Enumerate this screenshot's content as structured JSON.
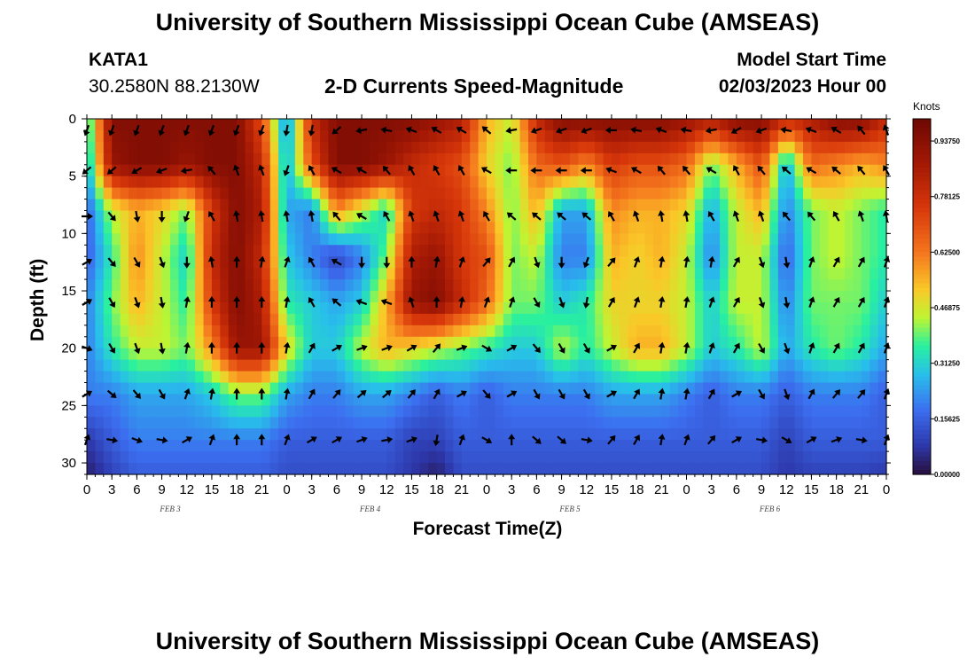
{
  "header": {
    "title": "University of Southern Mississippi Ocean Cube (AMSEAS)",
    "station": "KATA1",
    "coords": "30.2580N  88.2130W",
    "subtitle": "2-D Currents Speed-Magnitude",
    "model_start_label": "Model Start Time",
    "model_start_date": "02/03/2023 Hour 00"
  },
  "footer": {
    "title_repeat": "University of Southern Mississippi Ocean Cube (AMSEAS)"
  },
  "chart_data": {
    "type": "heatmap",
    "title": "2-D Currents Speed-Magnitude",
    "xlabel": "Forecast Time(Z)",
    "ylabel": "Depth (ft)",
    "x_tick_labels": [
      "0",
      "3",
      "6",
      "9",
      "12",
      "15",
      "18",
      "21",
      "0",
      "3",
      "6",
      "9",
      "12",
      "15",
      "18",
      "21",
      "0",
      "3",
      "6",
      "9",
      "12",
      "15",
      "18",
      "21",
      "0",
      "3",
      "6",
      "9",
      "12",
      "15",
      "18",
      "21",
      "0"
    ],
    "day_labels": [
      "FEB 3",
      "FEB 4",
      "FEB 5",
      "FEB 6"
    ],
    "x_range_hours": [
      0,
      96
    ],
    "y_ticks": [
      "0",
      "5",
      "10",
      "15",
      "20",
      "25",
      "30"
    ],
    "y_range_ft": [
      0,
      31
    ],
    "colorbar": {
      "unit": "Knots",
      "labels": [
        "0.93750",
        "0.78125",
        "0.62500",
        "0.46875",
        "0.31250",
        "0.15625",
        "0.00000"
      ],
      "range": [
        0,
        1.0
      ]
    },
    "arrow_depths_ft": [
      1,
      4.5,
      8.5,
      12.5,
      16,
      20,
      24,
      28
    ],
    "arrow_hours": [
      0,
      3,
      6,
      9,
      12,
      15,
      18,
      21,
      24,
      27,
      30,
      33,
      36,
      39,
      42,
      45,
      48,
      51,
      54,
      57,
      60,
      63,
      66,
      69,
      72,
      75,
      78,
      81,
      84,
      87,
      90,
      93,
      96
    ],
    "speed_profile_keyframes": {
      "hours": [
        0,
        3,
        6,
        9,
        12,
        15,
        18,
        21,
        24,
        27,
        30,
        33,
        36,
        39,
        42,
        45,
        48,
        51,
        54,
        57,
        60,
        63,
        66,
        69,
        72,
        75,
        78,
        81,
        84,
        87,
        90,
        93,
        96
      ],
      "depths_ft": [
        0,
        4,
        8,
        12,
        16,
        20,
        24,
        28,
        31
      ],
      "speed_knots": [
        [
          0.3,
          0.95,
          0.95,
          0.95,
          0.95,
          0.95,
          0.95,
          0.7,
          0.2,
          0.8,
          0.95,
          0.95,
          0.95,
          0.95,
          0.9,
          0.85,
          0.55,
          0.45,
          0.8,
          0.95,
          0.95,
          0.95,
          0.95,
          0.95,
          0.9,
          0.85,
          0.95,
          0.95,
          0.8,
          0.85,
          0.95,
          0.95,
          0.8
        ],
        [
          0.25,
          0.9,
          0.95,
          0.95,
          0.9,
          0.95,
          0.95,
          0.8,
          0.25,
          0.7,
          0.95,
          0.95,
          0.9,
          0.8,
          0.75,
          0.7,
          0.5,
          0.4,
          0.65,
          0.7,
          0.6,
          0.75,
          0.7,
          0.7,
          0.65,
          0.4,
          0.55,
          0.7,
          0.25,
          0.65,
          0.6,
          0.55,
          0.6
        ],
        [
          0.15,
          0.45,
          0.55,
          0.5,
          0.4,
          0.75,
          0.95,
          0.85,
          0.25,
          0.2,
          0.6,
          0.45,
          0.3,
          0.75,
          0.8,
          0.75,
          0.6,
          0.4,
          0.55,
          0.25,
          0.25,
          0.6,
          0.55,
          0.55,
          0.5,
          0.25,
          0.45,
          0.55,
          0.2,
          0.4,
          0.45,
          0.4,
          0.35
        ],
        [
          0.15,
          0.35,
          0.6,
          0.45,
          0.3,
          0.8,
          0.95,
          0.8,
          0.3,
          0.2,
          0.1,
          0.2,
          0.4,
          0.85,
          0.9,
          0.75,
          0.7,
          0.4,
          0.45,
          0.2,
          0.2,
          0.55,
          0.5,
          0.55,
          0.45,
          0.2,
          0.45,
          0.45,
          0.15,
          0.4,
          0.45,
          0.4,
          0.35
        ],
        [
          0.2,
          0.4,
          0.55,
          0.45,
          0.35,
          0.75,
          0.95,
          0.85,
          0.35,
          0.3,
          0.25,
          0.3,
          0.55,
          0.9,
          0.95,
          0.8,
          0.65,
          0.4,
          0.4,
          0.3,
          0.35,
          0.5,
          0.5,
          0.5,
          0.45,
          0.3,
          0.45,
          0.45,
          0.2,
          0.4,
          0.4,
          0.4,
          0.3
        ],
        [
          0.2,
          0.35,
          0.45,
          0.45,
          0.4,
          0.6,
          0.9,
          0.9,
          0.5,
          0.3,
          0.3,
          0.45,
          0.55,
          0.5,
          0.45,
          0.4,
          0.35,
          0.3,
          0.3,
          0.45,
          0.35,
          0.45,
          0.55,
          0.55,
          0.45,
          0.3,
          0.35,
          0.45,
          0.25,
          0.35,
          0.4,
          0.35,
          0.25
        ],
        [
          0.2,
          0.2,
          0.25,
          0.25,
          0.25,
          0.3,
          0.4,
          0.4,
          0.25,
          0.2,
          0.2,
          0.25,
          0.25,
          0.2,
          0.15,
          0.2,
          0.15,
          0.2,
          0.2,
          0.2,
          0.2,
          0.25,
          0.25,
          0.25,
          0.2,
          0.15,
          0.2,
          0.2,
          0.15,
          0.2,
          0.2,
          0.2,
          0.15
        ],
        [
          0.08,
          0.15,
          0.2,
          0.2,
          0.2,
          0.2,
          0.2,
          0.2,
          0.15,
          0.15,
          0.15,
          0.15,
          0.15,
          0.1,
          0.1,
          0.15,
          0.15,
          0.15,
          0.15,
          0.15,
          0.15,
          0.15,
          0.15,
          0.15,
          0.15,
          0.15,
          0.15,
          0.15,
          0.1,
          0.15,
          0.15,
          0.15,
          0.15
        ],
        [
          0.03,
          0.1,
          0.15,
          0.15,
          0.15,
          0.15,
          0.15,
          0.15,
          0.12,
          0.12,
          0.12,
          0.12,
          0.12,
          0.08,
          0.03,
          0.12,
          0.12,
          0.12,
          0.12,
          0.12,
          0.12,
          0.12,
          0.12,
          0.12,
          0.12,
          0.12,
          0.12,
          0.12,
          0.08,
          0.1,
          0.1,
          0.1,
          0.08
        ]
      ]
    },
    "direction_keyframes_deg": {
      "note": "compass degrees current flows toward (0=north/up), per depth row",
      "rows": [
        [
          200,
          200,
          200,
          200,
          200,
          200,
          200,
          200,
          190,
          190,
          230,
          260,
          280,
          290,
          300,
          300,
          310,
          260,
          250,
          250,
          250,
          270,
          280,
          290,
          280,
          260,
          240,
          250,
          280,
          290,
          300,
          320,
          340
        ],
        [
          230,
          230,
          240,
          250,
          260,
          320,
          340,
          340,
          200,
          330,
          300,
          300,
          320,
          330,
          330,
          330,
          300,
          270,
          270,
          270,
          270,
          290,
          300,
          320,
          320,
          300,
          330,
          320,
          310,
          300,
          310,
          320,
          330
        ],
        [
          90,
          140,
          170,
          180,
          200,
          330,
          350,
          350,
          350,
          350,
          320,
          300,
          330,
          340,
          340,
          340,
          330,
          310,
          310,
          310,
          310,
          330,
          340,
          350,
          350,
          330,
          340,
          340,
          320,
          320,
          330,
          340,
          350
        ],
        [
          60,
          140,
          150,
          160,
          180,
          350,
          0,
          10,
          20,
          330,
          300,
          180,
          180,
          0,
          10,
          20,
          40,
          30,
          160,
          180,
          200,
          40,
          20,
          10,
          10,
          10,
          30,
          160,
          170,
          20,
          30,
          30,
          20
        ],
        [
          60,
          150,
          160,
          170,
          10,
          0,
          0,
          0,
          10,
          330,
          310,
          290,
          290,
          340,
          0,
          10,
          20,
          20,
          150,
          160,
          190,
          30,
          20,
          10,
          10,
          20,
          30,
          160,
          170,
          20,
          30,
          30,
          20
        ],
        [
          110,
          150,
          160,
          170,
          10,
          0,
          0,
          0,
          10,
          30,
          60,
          70,
          70,
          60,
          40,
          70,
          120,
          60,
          140,
          150,
          150,
          60,
          30,
          10,
          10,
          20,
          30,
          150,
          160,
          20,
          30,
          30,
          20
        ],
        [
          60,
          130,
          140,
          150,
          20,
          10,
          0,
          0,
          10,
          30,
          40,
          50,
          50,
          40,
          30,
          60,
          140,
          60,
          150,
          150,
          150,
          60,
          30,
          10,
          10,
          30,
          60,
          150,
          160,
          30,
          40,
          40,
          20
        ],
        [
          20,
          100,
          110,
          100,
          60,
          20,
          0,
          0,
          20,
          60,
          60,
          70,
          80,
          70,
          190,
          20,
          120,
          0,
          130,
          130,
          100,
          40,
          30,
          10,
          20,
          40,
          60,
          100,
          120,
          60,
          70,
          100,
          20
        ]
      ]
    }
  }
}
